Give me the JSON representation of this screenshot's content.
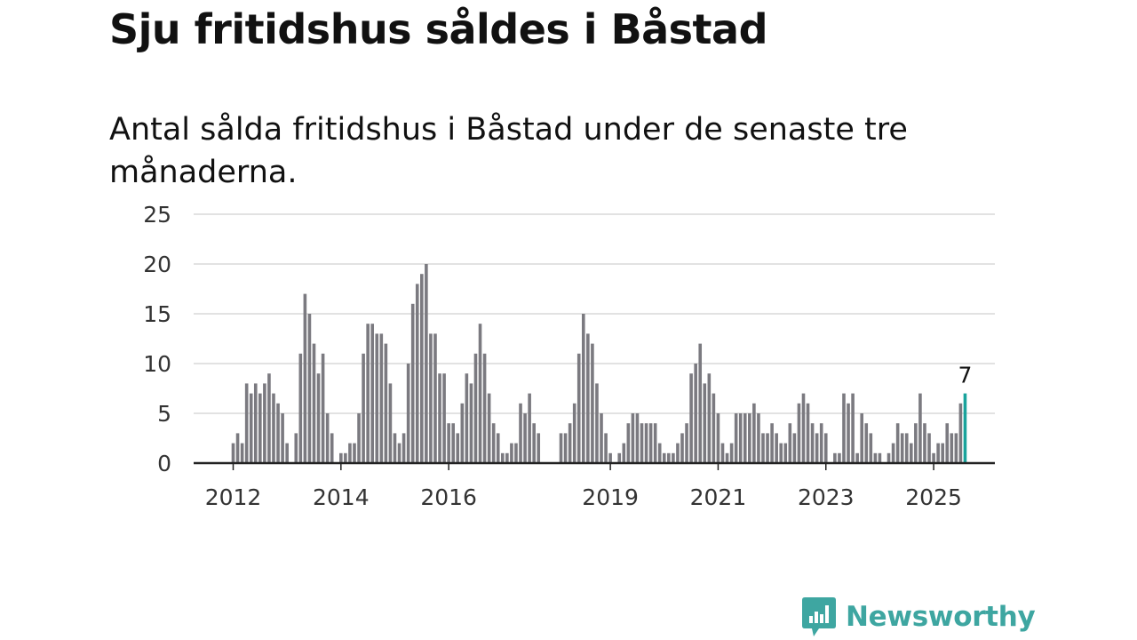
{
  "header": {
    "title": "Sju fritidshus såldes i Båstad",
    "subtitle": "Antal sålda fritidshus i Båstad under de senaste tre månaderna."
  },
  "brand": {
    "name": "Newsworthy",
    "icon": "newsworthy-logo-icon",
    "color": "#3ea6a1"
  },
  "colors": {
    "bar": "#7b7a80",
    "highlight": "#1aa39c",
    "grid": "#d9d9d9",
    "axis": "#222222"
  },
  "chart_data": {
    "type": "bar",
    "title": "Sju fritidshus såldes i Båstad",
    "subtitle": "Antal sålda fritidshus i Båstad under de senaste tre månaderna.",
    "xlabel": "",
    "ylabel": "",
    "ylim": [
      0,
      25
    ],
    "yticks": [
      0,
      5,
      10,
      15,
      20,
      25
    ],
    "grid": true,
    "legend": "none",
    "xticks": [
      {
        "label": "2012",
        "index": 0
      },
      {
        "label": "2014",
        "index": 24
      },
      {
        "label": "2016",
        "index": 48
      },
      {
        "label": "2019",
        "index": 84
      },
      {
        "label": "2021",
        "index": 108
      },
      {
        "label": "2023",
        "index": 132
      },
      {
        "label": "2025",
        "index": 156
      }
    ],
    "start": "2012-01",
    "frequency": "monthly",
    "values": [
      2,
      3,
      2,
      8,
      7,
      8,
      7,
      8,
      9,
      7,
      6,
      5,
      2,
      0,
      3,
      11,
      17,
      15,
      12,
      9,
      11,
      5,
      3,
      0,
      1,
      1,
      2,
      2,
      5,
      11,
      14,
      14,
      13,
      13,
      12,
      8,
      3,
      2,
      3,
      10,
      16,
      18,
      19,
      20,
      13,
      13,
      9,
      9,
      4,
      4,
      3,
      6,
      9,
      8,
      11,
      14,
      11,
      7,
      4,
      3,
      1,
      1,
      2,
      2,
      6,
      5,
      7,
      4,
      3,
      0,
      0,
      0,
      0,
      3,
      3,
      4,
      6,
      11,
      15,
      13,
      12,
      8,
      5,
      3,
      1,
      0,
      1,
      2,
      4,
      5,
      5,
      4,
      4,
      4,
      4,
      2,
      1,
      1,
      1,
      2,
      3,
      4,
      9,
      10,
      12,
      8,
      9,
      7,
      5,
      2,
      1,
      2,
      5,
      5,
      5,
      5,
      6,
      5,
      3,
      3,
      4,
      3,
      2,
      2,
      4,
      3,
      6,
      7,
      6,
      4,
      3,
      4,
      3,
      0,
      1,
      1,
      7,
      6,
      7,
      1,
      5,
      4,
      3,
      1,
      1,
      0,
      1,
      2,
      4,
      3,
      3,
      2,
      4,
      7,
      4,
      3,
      1,
      2,
      2,
      4,
      3,
      3,
      6,
      7
    ],
    "highlight_last": true,
    "last_label": "7"
  }
}
